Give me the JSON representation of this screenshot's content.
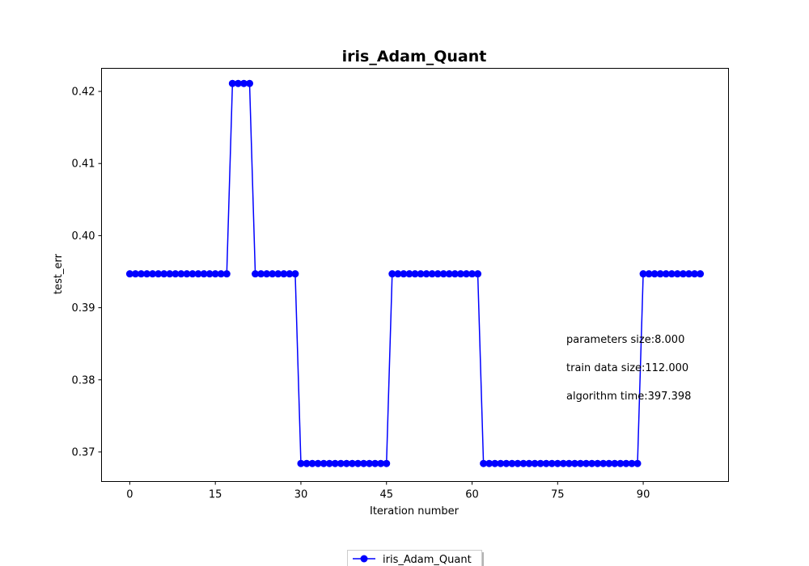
{
  "chart_data": {
    "type": "line",
    "title": "iris_Adam_Quant",
    "xlabel": "Iteration number",
    "ylabel": "test_err",
    "xlim": [
      -4.95,
      104.95
    ],
    "ylim": [
      0.3659,
      0.4232
    ],
    "xticks": [
      0,
      15,
      30,
      45,
      60,
      75,
      90
    ],
    "yticks": [
      0.37,
      0.38,
      0.39,
      0.4,
      0.41,
      0.42
    ],
    "ytick_labels": [
      "0.37",
      "0.38",
      "0.39",
      "0.40",
      "0.41",
      "0.42"
    ],
    "grid": false,
    "legend_position": "bottom-center",
    "series": [
      {
        "name": "iris_Adam_Quant",
        "color": "#0000ff",
        "marker": "circle",
        "x": [
          0,
          1,
          2,
          3,
          4,
          5,
          6,
          7,
          8,
          9,
          10,
          11,
          12,
          13,
          14,
          15,
          16,
          17,
          18,
          19,
          20,
          21,
          22,
          23,
          24,
          25,
          26,
          27,
          28,
          29,
          30,
          31,
          32,
          33,
          34,
          35,
          36,
          37,
          38,
          39,
          40,
          41,
          42,
          43,
          44,
          45,
          46,
          47,
          48,
          49,
          50,
          51,
          52,
          53,
          54,
          55,
          56,
          57,
          58,
          59,
          60,
          61,
          62,
          63,
          64,
          65,
          66,
          67,
          68,
          69,
          70,
          71,
          72,
          73,
          74,
          75,
          76,
          77,
          78,
          79,
          80,
          81,
          82,
          83,
          84,
          85,
          86,
          87,
          88,
          89,
          90,
          91,
          92,
          93,
          94,
          95,
          96,
          97,
          98,
          99,
          100
        ],
        "values": [
          0.3947,
          0.3947,
          0.3947,
          0.3947,
          0.3947,
          0.3947,
          0.3947,
          0.3947,
          0.3947,
          0.3947,
          0.3947,
          0.3947,
          0.3947,
          0.3947,
          0.3947,
          0.3947,
          0.3947,
          0.3947,
          0.4211,
          0.4211,
          0.4211,
          0.4211,
          0.3947,
          0.3947,
          0.3947,
          0.3947,
          0.3947,
          0.3947,
          0.3947,
          0.3947,
          0.3684,
          0.3684,
          0.3684,
          0.3684,
          0.3684,
          0.3684,
          0.3684,
          0.3684,
          0.3684,
          0.3684,
          0.3684,
          0.3684,
          0.3684,
          0.3684,
          0.3684,
          0.3684,
          0.3947,
          0.3947,
          0.3947,
          0.3947,
          0.3947,
          0.3947,
          0.3947,
          0.3947,
          0.3947,
          0.3947,
          0.3947,
          0.3947,
          0.3947,
          0.3947,
          0.3947,
          0.3947,
          0.3684,
          0.3684,
          0.3684,
          0.3684,
          0.3684,
          0.3684,
          0.3684,
          0.3684,
          0.3684,
          0.3684,
          0.3684,
          0.3684,
          0.3684,
          0.3684,
          0.3684,
          0.3684,
          0.3684,
          0.3684,
          0.3684,
          0.3684,
          0.3684,
          0.3684,
          0.3684,
          0.3684,
          0.3684,
          0.3684,
          0.3684,
          0.3684,
          0.3947,
          0.3947,
          0.3947,
          0.3947,
          0.3947,
          0.3947,
          0.3947,
          0.3947,
          0.3947,
          0.3947,
          0.3947
        ]
      }
    ],
    "annotations": [
      "parameters size:8.000",
      "train data size:112.000",
      "algorithm time:397.398"
    ]
  }
}
